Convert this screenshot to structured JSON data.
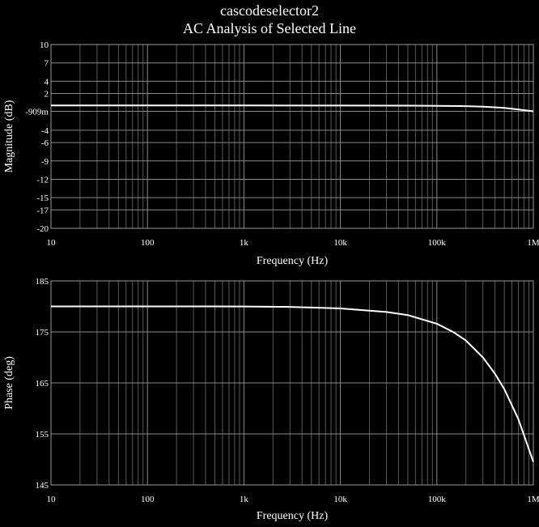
{
  "title": "cascodeselector2",
  "subtitle": "AC Analysis of Selected Line",
  "colors": {
    "background": "#000000",
    "trace": "#ffffff",
    "grid": "#8a8a8a",
    "text": "#ffffff"
  },
  "chart_data": [
    {
      "type": "line",
      "xscale": "log",
      "xlabel": "Frequency (Hz)",
      "ylabel": "Magnitude (dB)",
      "xlim": [
        10,
        1000000
      ],
      "ylim": [
        -20,
        10
      ],
      "x_ticks": [
        10,
        100,
        1000,
        10000,
        100000,
        1000000
      ],
      "x_tick_labels": [
        "10",
        "100",
        "1k",
        "10k",
        "100k",
        "1M"
      ],
      "y_ticks": [
        10,
        7,
        4,
        2,
        -0.909,
        -4,
        -6,
        -9,
        -12,
        -15,
        -17,
        -20
      ],
      "y_tick_labels": [
        "10",
        "7",
        "4",
        "2",
        "-909m",
        "-4",
        "-6",
        "-9",
        "-12",
        "-15",
        "-17",
        "-20"
      ],
      "grid": true,
      "series": [
        {
          "x": [
            10,
            100,
            1000,
            10000,
            50000,
            100000,
            200000,
            300000,
            500000,
            700000,
            1000000
          ],
          "y": [
            0.05,
            0.05,
            0.05,
            0.04,
            0.02,
            0.0,
            -0.06,
            -0.15,
            -0.35,
            -0.6,
            -0.909
          ]
        }
      ]
    },
    {
      "type": "line",
      "xscale": "log",
      "xlabel": "Frequency (Hz)",
      "ylabel": "Phase (deg)",
      "xlim": [
        10,
        1000000
      ],
      "ylim": [
        145,
        185
      ],
      "x_ticks": [
        10,
        100,
        1000,
        10000,
        100000,
        1000000
      ],
      "x_tick_labels": [
        "10",
        "100",
        "1k",
        "10k",
        "100k",
        "1M"
      ],
      "y_ticks": [
        185,
        175,
        165,
        155,
        145
      ],
      "y_tick_labels": [
        "185",
        "175",
        "165",
        "155",
        "145"
      ],
      "grid": true,
      "series": [
        {
          "x": [
            10,
            100,
            1000,
            3000,
            10000,
            30000,
            50000,
            100000,
            150000,
            200000,
            300000,
            400000,
            500000,
            700000,
            1000000
          ],
          "y": [
            180,
            180,
            179.99,
            179.9,
            179.6,
            178.9,
            178.3,
            176.6,
            174.9,
            173.3,
            170.0,
            166.8,
            163.8,
            157.9,
            149.5
          ]
        }
      ]
    }
  ]
}
